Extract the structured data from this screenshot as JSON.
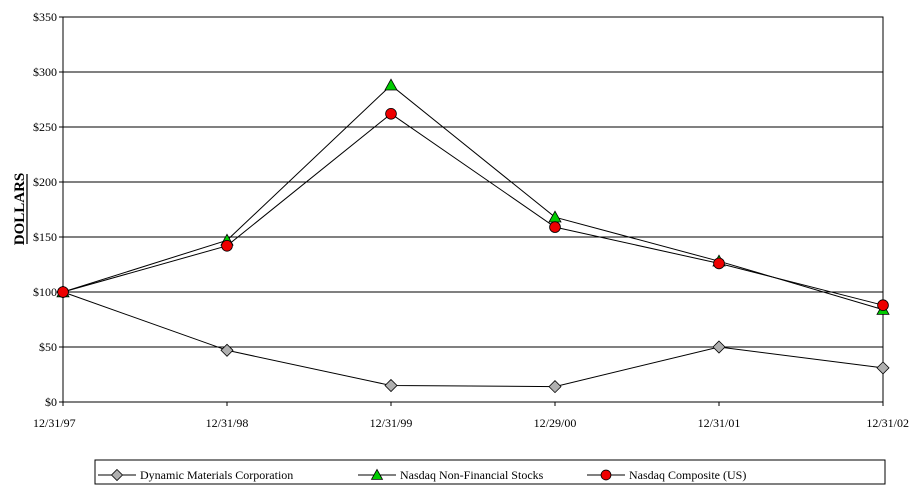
{
  "chart_data": {
    "type": "line",
    "xlabel": "",
    "ylabel": "DOLLARS",
    "x": [
      "12/31/97",
      "12/31/98",
      "12/31/99",
      "12/29/00",
      "12/31/01",
      "12/31/02"
    ],
    "ylim": [
      0,
      350
    ],
    "yticks": [
      0,
      50,
      100,
      150,
      200,
      250,
      300,
      350
    ],
    "ytick_labels": [
      "$0",
      "$50",
      "$100",
      "$150",
      "$200",
      "$250",
      "$300",
      "$350"
    ],
    "grid": "horizontal",
    "legend_position": "bottom",
    "series": [
      {
        "name": "Dynamic Materials Corporation",
        "marker": "diamond",
        "color": "#b0b0b0",
        "values": [
          100,
          47,
          15,
          14,
          50,
          31
        ]
      },
      {
        "name": "Nasdaq Non-Financial Stocks",
        "marker": "triangle",
        "color": "#00cc00",
        "values": [
          100,
          147,
          288,
          168,
          128,
          84
        ]
      },
      {
        "name": "Nasdaq Composite (US)",
        "marker": "circle",
        "color": "#ee0000",
        "values": [
          100,
          142,
          262,
          159,
          126,
          88
        ]
      }
    ]
  }
}
